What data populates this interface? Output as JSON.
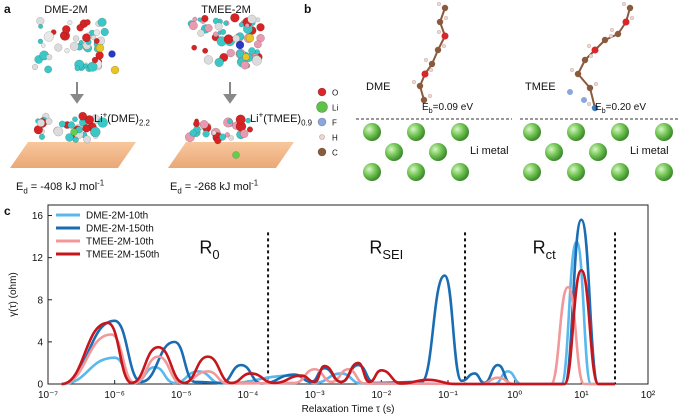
{
  "panel_a": {
    "label": "a",
    "columns": [
      {
        "title": "DME-2M",
        "complex": [
          {
            "text": "Li"
          },
          {
            "text": "+",
            "shift": "sup"
          },
          {
            "text": "(DME)"
          },
          {
            "text": "2.2",
            "shift": "sub"
          }
        ],
        "energy": [
          {
            "text": "E"
          },
          {
            "text": "d",
            "shift": "sub"
          },
          {
            "text": " = -408 kJ mol"
          },
          {
            "text": "-1",
            "shift": "sup"
          }
        ]
      },
      {
        "title": "TMEE-2M",
        "complex": [
          {
            "text": "Li"
          },
          {
            "text": "+",
            "shift": "sup"
          },
          {
            "text": "(TMEE)"
          },
          {
            "text": "0.9",
            "shift": "sub"
          }
        ],
        "energy": [
          {
            "text": "E"
          },
          {
            "text": "d",
            "shift": "sub"
          },
          {
            "text": " = -268 kJ mol"
          },
          {
            "text": "-1",
            "shift": "sup"
          }
        ]
      }
    ]
  },
  "panel_b": {
    "label": "b",
    "elements": [
      "O",
      "Li",
      "F",
      "H",
      "C"
    ],
    "systems": [
      {
        "name": "DME",
        "binding": [
          {
            "text": "E"
          },
          {
            "text": "b",
            "shift": "sub"
          },
          {
            "text": "=0.09 eV"
          }
        ],
        "substrate": "Li metal"
      },
      {
        "name": "TMEE",
        "binding": [
          {
            "text": "E"
          },
          {
            "text": "b",
            "shift": "sub"
          },
          {
            "text": "=0.20 eV"
          }
        ],
        "substrate": "Li metal"
      }
    ]
  },
  "chart_data": {
    "type": "line",
    "panel_label": "c",
    "xlabel": "Relaxation Time τ (s)",
    "ylabel": "γ(τ) (ohm)",
    "xlog": true,
    "xlim": [
      1e-07,
      100
    ],
    "xticks": [
      {
        "value": 1e-07,
        "label": "10⁻⁷"
      },
      {
        "value": 1e-06,
        "label": "10⁻⁶"
      },
      {
        "value": 1e-05,
        "label": "10⁻⁵"
      },
      {
        "value": 0.0001,
        "label": "10⁻⁴"
      },
      {
        "value": 0.001,
        "label": "10⁻³"
      },
      {
        "value": 0.01,
        "label": "10⁻²"
      },
      {
        "value": 0.1,
        "label": "10⁻¹"
      },
      {
        "value": 1,
        "label": "10⁰"
      },
      {
        "value": 10,
        "label": "10¹"
      },
      {
        "value": 100,
        "label": "10²"
      }
    ],
    "ylim": [
      0,
      17
    ],
    "yticks": [
      0,
      4,
      8,
      12,
      16
    ],
    "legend": "upper left",
    "vlines": [
      0.0002,
      0.18,
      32
    ],
    "annotations": [
      [
        {
          "text": "R"
        },
        {
          "text": "0",
          "shift": "sub"
        }
      ],
      [
        {
          "text": "R"
        },
        {
          "text": "SEI",
          "shift": "sub"
        }
      ],
      [
        {
          "text": "R"
        },
        {
          "text": "ct",
          "shift": "sub"
        }
      ]
    ],
    "series": [
      {
        "name": "DME-2M-10th",
        "color": "#5ab8ee",
        "x": [
          1.6e-07,
          1e-06,
          2e-06,
          4e-06,
          7.9e-06,
          1.8e-05,
          4e-05,
          0.0005,
          0.001,
          0.0025,
          0.005,
          0.5,
          0.79,
          1.26,
          5,
          8.5,
          14,
          32
        ],
        "values": [
          0,
          2.5,
          0.1,
          1.6,
          0.1,
          1.2,
          0.05,
          0.8,
          0.1,
          1.0,
          0.05,
          0,
          1.2,
          0,
          0,
          13.5,
          0,
          0
        ]
      },
      {
        "name": "DME-2M-150th",
        "color": "#1a6db3",
        "x": [
          1.6e-07,
          1e-06,
          2.5e-06,
          7.9e-06,
          1.6e-05,
          4e-05,
          7.9e-05,
          0.00016,
          0.0005,
          0.00089,
          0.0014,
          0.0025,
          0.0045,
          0.0079,
          0.04,
          0.089,
          0.16,
          0.25,
          0.35,
          0.56,
          0.89,
          5.6,
          10,
          18,
          32
        ],
        "values": [
          0,
          6.0,
          0.2,
          4.0,
          0.2,
          0.1,
          1.8,
          0.05,
          0.9,
          0.2,
          1.5,
          0.2,
          1.8,
          0.1,
          0.2,
          10.3,
          0.3,
          1.0,
          0.1,
          1.8,
          0,
          0,
          15.6,
          0,
          0
        ]
      },
      {
        "name": "TMEE-2M-10th",
        "color": "#f2989a",
        "x": [
          1.6e-07,
          8.9e-07,
          2e-06,
          4.5e-06,
          1e-05,
          2.5e-05,
          5e-05,
          0.0005,
          0.001,
          0.0018,
          0.0032,
          0.0056,
          0.32,
          0.56,
          1,
          3.5,
          6.3,
          11,
          32
        ],
        "values": [
          0,
          4.7,
          0.1,
          2.6,
          0.1,
          1.2,
          0.05,
          0.1,
          1.4,
          0.2,
          1.4,
          0.05,
          0,
          0.6,
          0,
          0,
          9.2,
          0,
          0
        ]
      },
      {
        "name": "TMEE-2M-150th",
        "color": "#c4161c",
        "x": [
          1.6e-07,
          7.9e-07,
          1.8e-06,
          4.5e-06,
          1.1e-05,
          2.5e-05,
          5.6e-05,
          0.00011,
          0.00025,
          0.00063,
          0.001,
          0.0014,
          0.0025,
          0.0045,
          0.0066,
          0.01,
          0.02,
          0.05,
          0.13,
          5.6,
          10,
          18,
          32
        ],
        "values": [
          0,
          5.8,
          0.1,
          3.5,
          0.1,
          2.6,
          0.1,
          1.0,
          0.1,
          0.8,
          0.2,
          1.7,
          0.2,
          2.0,
          0.2,
          1.3,
          0.05,
          0.4,
          0,
          0,
          10.8,
          0,
          0
        ]
      }
    ]
  }
}
